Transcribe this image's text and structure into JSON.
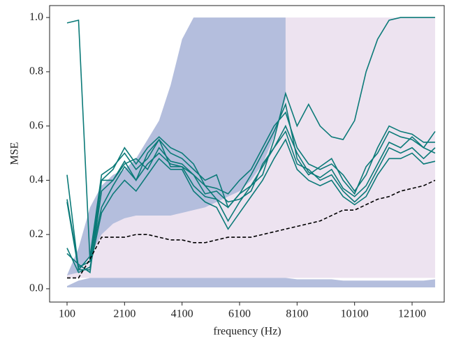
{
  "chart_data": {
    "type": "line",
    "x_label": "frequency (Hz)",
    "y_label": "MSE",
    "xlim": [
      -507,
      13217
    ],
    "ylim": [
      -0.049,
      1.044
    ],
    "xticks": [
      100,
      2100,
      4100,
      6100,
      8100,
      10100,
      12100
    ],
    "yticks": [
      {
        "value": 0,
        "label": "0.0"
      },
      {
        "value": 0.2,
        "label": "0.2"
      },
      {
        "value": 0.4,
        "label": "0.4"
      },
      {
        "value": 0.6,
        "label": "0.6"
      },
      {
        "value": 0.8,
        "label": "0.8"
      },
      {
        "value": 1,
        "label": "1.0"
      }
    ],
    "x": [
      100,
      500,
      900,
      1300,
      1700,
      2100,
      2500,
      2900,
      3300,
      3700,
      4100,
      4500,
      4900,
      5300,
      5700,
      6100,
      6500,
      6900,
      7300,
      7700,
      8100,
      8500,
      8900,
      9300,
      9700,
      10100,
      10500,
      10900,
      11300,
      11700,
      12100,
      12500,
      12900
    ],
    "series": [
      {
        "kind": "area",
        "color": "#ede3f0",
        "lower": [
          0.04,
          0.04,
          0.04,
          0.04,
          0.04,
          0.04,
          0.04,
          0.04,
          0.04,
          0.04,
          0.04,
          0.04,
          0.04,
          0.04,
          0.04,
          0.04,
          0.04,
          0.04,
          0.04,
          0.04,
          0.04,
          0.04,
          0.04,
          0.04,
          0.04,
          0.04,
          0.04,
          0.04,
          0.04,
          0.04,
          0.04,
          0.04,
          0.04
        ],
        "upper": [
          0.05,
          0.1,
          0.2,
          0.3,
          0.38,
          0.42,
          0.44,
          0.45,
          0.46,
          0.48,
          0.5,
          0.52,
          0.55,
          0.58,
          0.62,
          0.66,
          0.72,
          0.8,
          0.92,
          1,
          1,
          1,
          1,
          1,
          1,
          1,
          1,
          1,
          1,
          1,
          1,
          1,
          1
        ]
      },
      {
        "kind": "area",
        "color": "#b4bedd",
        "lower": [
          0.05,
          0.06,
          0.12,
          0.2,
          0.24,
          0.26,
          0.27,
          0.27,
          0.27,
          0.27,
          0.28,
          0.29,
          0.3,
          0.32,
          0.34,
          0.36,
          0.4,
          0.46,
          0.56,
          0.7,
          null,
          null,
          null,
          null,
          null,
          null,
          null,
          null,
          null,
          null,
          null,
          null,
          null
        ],
        "upper": [
          0.05,
          0.15,
          0.3,
          0.38,
          0.42,
          0.44,
          0.48,
          0.55,
          0.62,
          0.75,
          0.92,
          1,
          1,
          1,
          1,
          1,
          1,
          1,
          1,
          1,
          null,
          null,
          null,
          null,
          null,
          null,
          null,
          null,
          null,
          null,
          null,
          null,
          null
        ]
      },
      {
        "kind": "area",
        "color": "#b4bedd",
        "lower": [
          0.005,
          0.005,
          0.005,
          0.005,
          0.005,
          0.005,
          0.005,
          0.005,
          0.005,
          0.005,
          0.005,
          0.005,
          0.005,
          0.005,
          0.005,
          0.005,
          0.005,
          0.005,
          0.005,
          0.005,
          0.005,
          0.005,
          0.005,
          0.005,
          0.005,
          0.005,
          0.005,
          0.005,
          0.005,
          0.005,
          0.005,
          0.005,
          0.005
        ],
        "upper": [
          0.01,
          0.03,
          0.04,
          0.04,
          0.04,
          0.04,
          0.04,
          0.04,
          0.04,
          0.04,
          0.04,
          0.04,
          0.04,
          0.04,
          0.04,
          0.04,
          0.04,
          0.04,
          0.04,
          0.04,
          0.035,
          0.035,
          0.035,
          0.035,
          0.03,
          0.03,
          0.03,
          0.03,
          0.03,
          0.03,
          0.03,
          0.03,
          0.035
        ]
      },
      {
        "kind": "line",
        "color": "#0b7a78",
        "values": [
          0.98,
          0.99,
          0.1,
          0.4,
          0.4,
          0.47,
          0.4,
          0.5,
          0.55,
          0.45,
          0.45,
          0.42,
          0.38,
          0.33,
          0.3,
          0.35,
          0.38,
          0.42,
          0.55,
          0.72,
          0.6,
          0.68,
          0.6,
          0.56,
          0.55,
          0.62,
          0.8,
          0.92,
          0.99,
          1,
          1,
          1,
          1
        ]
      },
      {
        "kind": "line",
        "color": "#0b7a78",
        "values": [
          0.42,
          0.07,
          0.12,
          0.42,
          0.45,
          0.5,
          0.44,
          0.48,
          0.55,
          0.5,
          0.48,
          0.44,
          0.4,
          0.42,
          0.3,
          0.35,
          0.42,
          0.5,
          0.58,
          0.68,
          0.48,
          0.42,
          0.45,
          0.48,
          0.4,
          0.35,
          0.45,
          0.5,
          0.58,
          0.56,
          0.55,
          0.52,
          0.58
        ]
      },
      {
        "kind": "line",
        "color": "#0b7a78",
        "values": [
          0.33,
          0.08,
          0.1,
          0.3,
          0.38,
          0.45,
          0.4,
          0.46,
          0.5,
          0.46,
          0.45,
          0.38,
          0.34,
          0.33,
          0.25,
          0.32,
          0.38,
          0.45,
          0.52,
          0.58,
          0.46,
          0.44,
          0.4,
          0.42,
          0.36,
          0.32,
          0.36,
          0.44,
          0.52,
          0.5,
          0.52,
          0.48,
          0.52
        ]
      },
      {
        "kind": "line",
        "color": "#0b7a78",
        "values": [
          0.15,
          0.06,
          0.08,
          0.28,
          0.35,
          0.4,
          0.36,
          0.42,
          0.48,
          0.44,
          0.44,
          0.36,
          0.32,
          0.3,
          0.22,
          0.28,
          0.34,
          0.4,
          0.48,
          0.55,
          0.44,
          0.4,
          0.38,
          0.4,
          0.34,
          0.31,
          0.34,
          0.42,
          0.48,
          0.48,
          0.5,
          0.46,
          0.47
        ]
      },
      {
        "kind": "line",
        "color": "#0b7a78",
        "values": [
          0.13,
          0.09,
          0.06,
          0.4,
          0.44,
          0.52,
          0.46,
          0.52,
          0.56,
          0.52,
          0.5,
          0.46,
          0.38,
          0.37,
          0.35,
          0.4,
          0.44,
          0.52,
          0.6,
          0.65,
          0.52,
          0.46,
          0.44,
          0.46,
          0.42,
          0.36,
          0.42,
          0.52,
          0.6,
          0.58,
          0.57,
          0.54,
          0.54
        ]
      },
      {
        "kind": "line",
        "color": "#0b7a78",
        "values": [
          0.32,
          0.07,
          0.07,
          0.36,
          0.4,
          0.46,
          0.48,
          0.44,
          0.52,
          0.47,
          0.46,
          0.42,
          0.35,
          0.36,
          0.32,
          0.33,
          0.36,
          0.46,
          0.52,
          0.6,
          0.5,
          0.43,
          0.41,
          0.44,
          0.37,
          0.34,
          0.38,
          0.46,
          0.54,
          0.52,
          0.56,
          0.52,
          0.5
        ]
      },
      {
        "kind": "line",
        "style": "dashed",
        "color": "#000000",
        "values": [
          0.04,
          0.04,
          0.11,
          0.19,
          0.19,
          0.19,
          0.2,
          0.2,
          0.19,
          0.18,
          0.18,
          0.17,
          0.17,
          0.18,
          0.19,
          0.19,
          0.19,
          0.2,
          0.21,
          0.22,
          0.23,
          0.24,
          0.25,
          0.27,
          0.29,
          0.29,
          0.31,
          0.33,
          0.34,
          0.36,
          0.37,
          0.38,
          0.4
        ]
      }
    ]
  }
}
